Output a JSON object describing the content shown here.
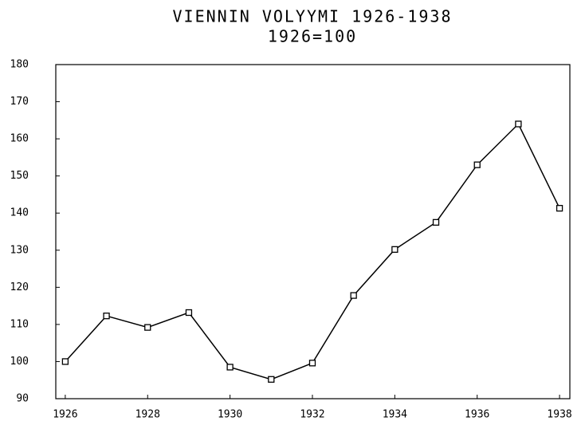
{
  "chart_data": {
    "type": "line",
    "title": "VIENNIN VOLYYMI 1926-1938",
    "subtitle": "1926=100",
    "x": [
      1926,
      1927,
      1928,
      1929,
      1930,
      1931,
      1932,
      1933,
      1934,
      1935,
      1936,
      1937,
      1938
    ],
    "series": [
      {
        "name": "Viennin volyymi",
        "color": "#000000",
        "values": [
          100,
          112.3,
          109.2,
          113.2,
          98.5,
          95.2,
          99.6,
          117.8,
          130.2,
          137.5,
          153,
          164,
          141.3
        ]
      }
    ],
    "xlim": [
      1925.77,
      1938.25
    ],
    "xticks": [
      1926,
      1928,
      1930,
      1932,
      1934,
      1936,
      1938
    ],
    "ylim": [
      90,
      180
    ],
    "yticks": [
      90,
      100,
      110,
      120,
      130,
      140,
      150,
      160,
      170,
      180
    ],
    "grid": false,
    "markers": "square"
  }
}
